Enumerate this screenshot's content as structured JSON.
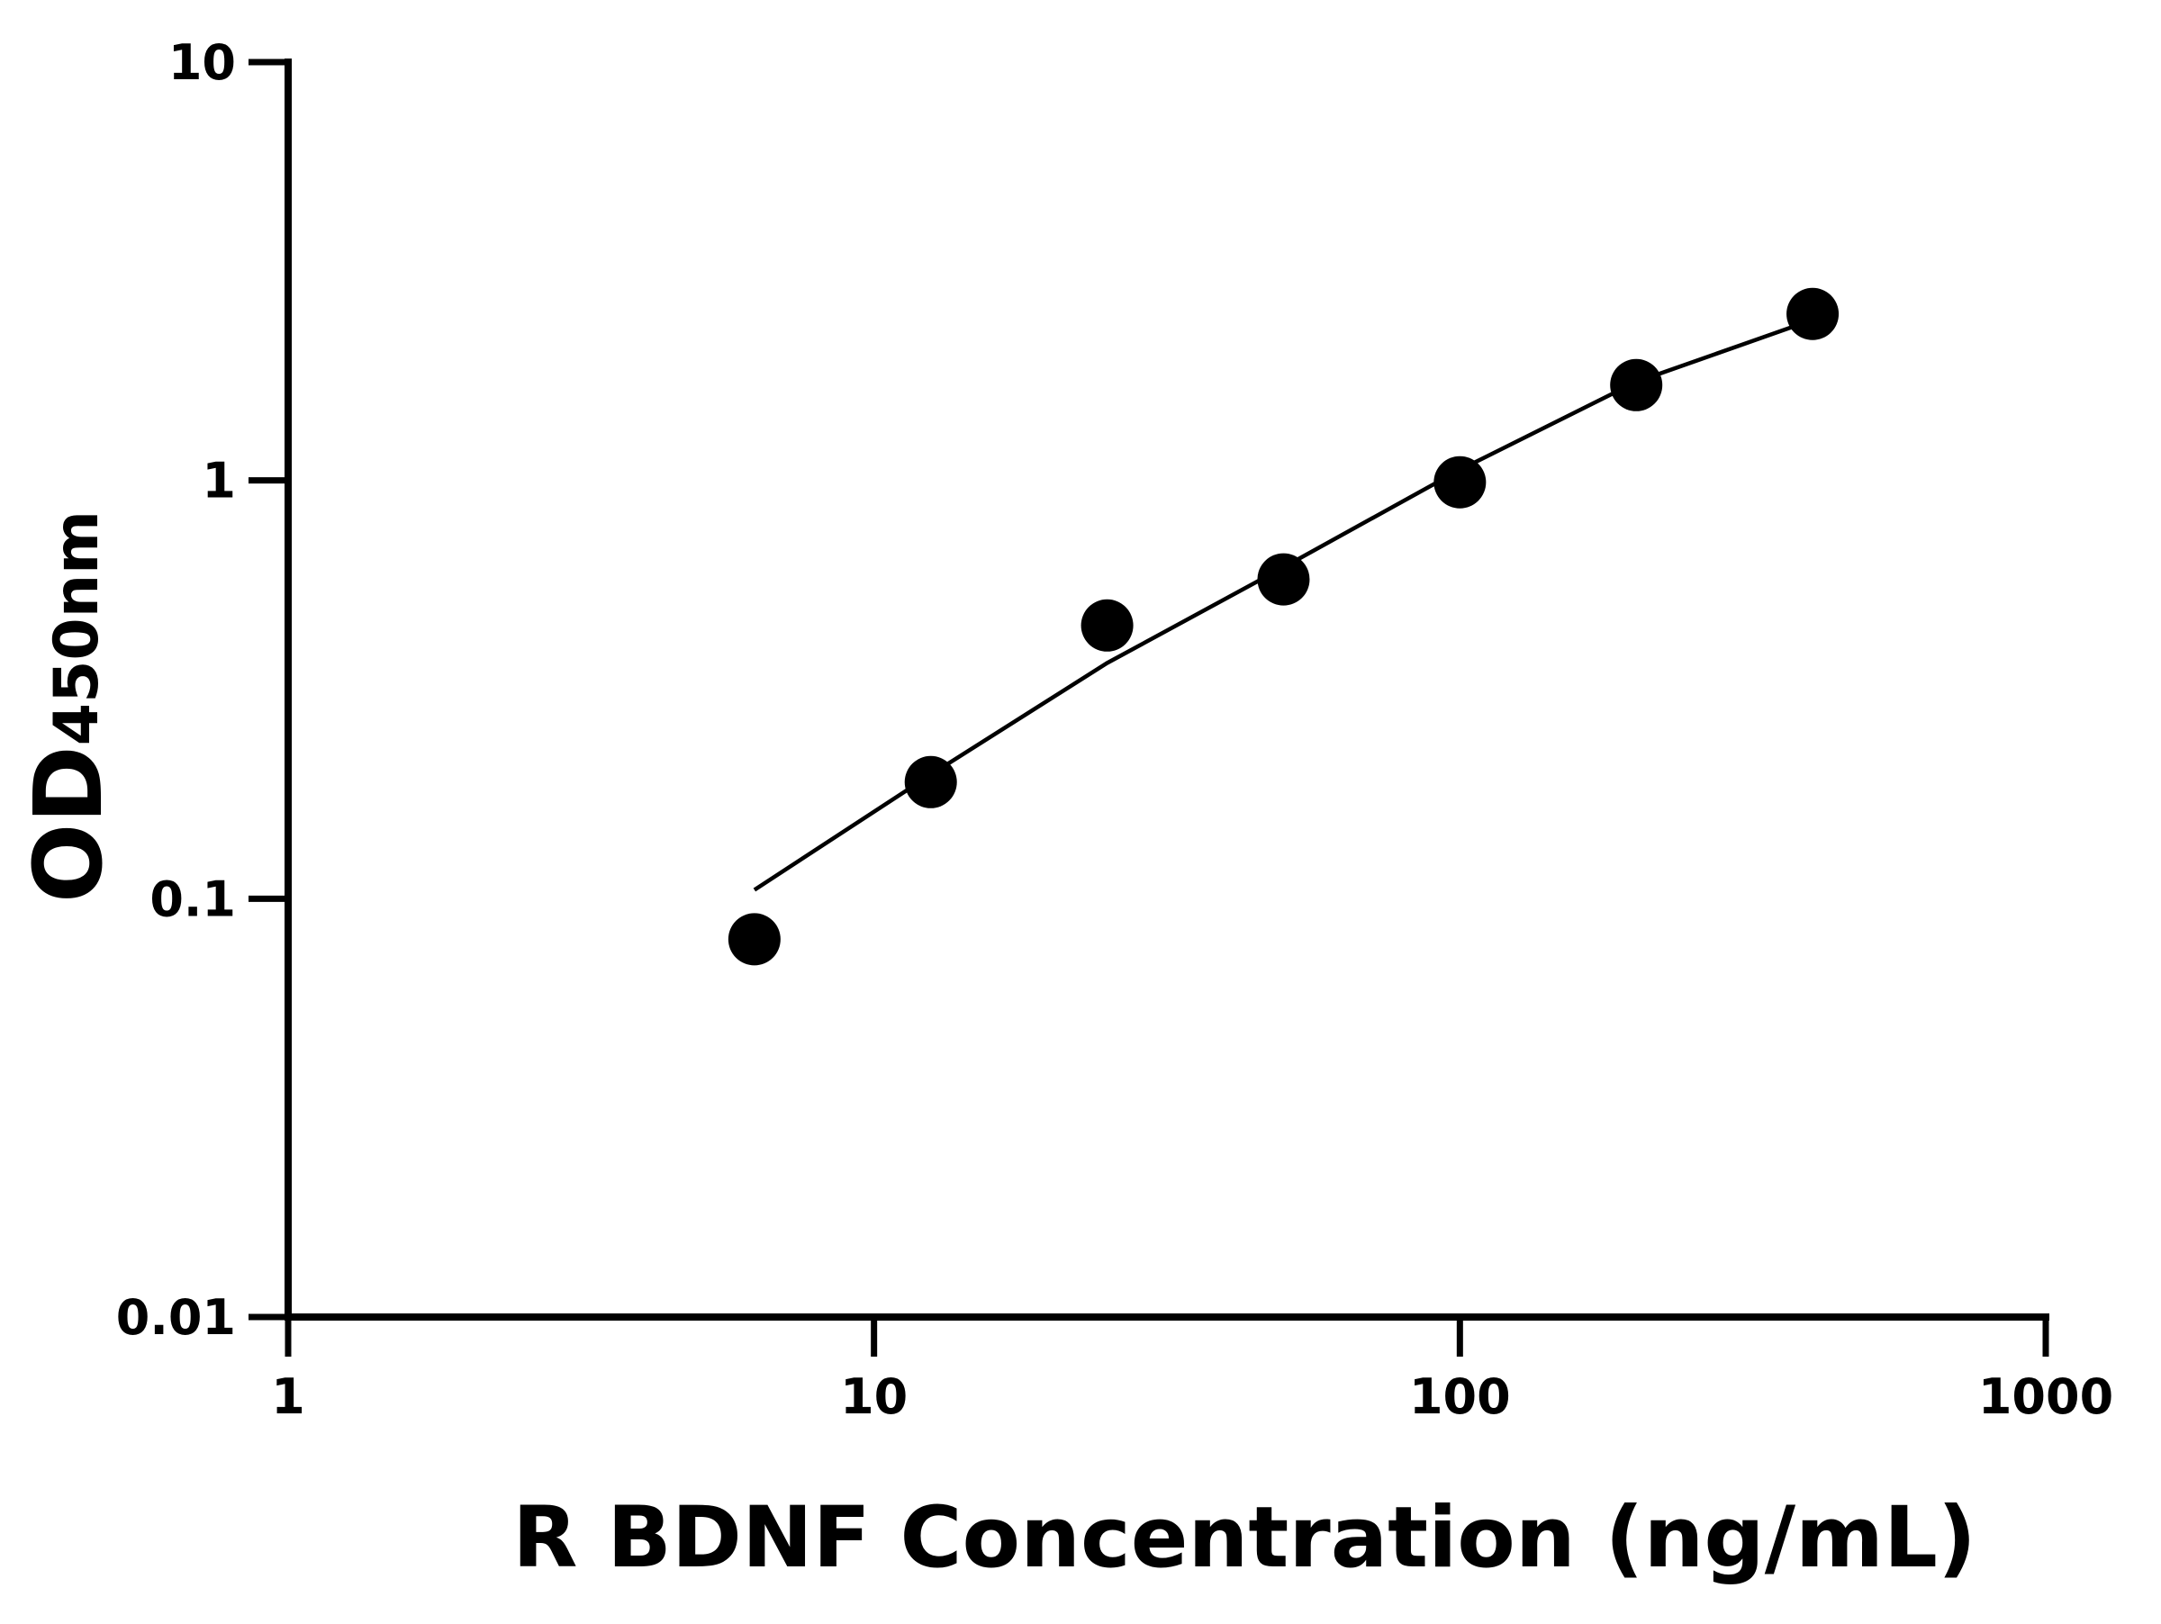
{
  "chart_data": {
    "type": "scatter",
    "x_label": "R BDNF Concentration (ng/mL)",
    "y_label": {
      "text": "OD",
      "subscript": "450nm"
    },
    "xscale": "log",
    "yscale": "log",
    "xlim": [
      1,
      1000
    ],
    "ylim": [
      0.01,
      10
    ],
    "xticks": [
      1,
      10,
      100,
      1000
    ],
    "yticks": [
      0.01,
      0.1,
      1,
      10
    ],
    "x": [
      6.25,
      12.5,
      25,
      50,
      100,
      200,
      400
    ],
    "series": [
      {
        "color": "#000000",
        "values": [
          0.08,
          0.19,
          0.45,
          0.58,
          0.99,
          1.69,
          2.5
        ]
      }
    ],
    "curve": {
      "color": "#000000",
      "x": [
        6.25,
        12.5,
        25,
        50,
        100,
        200,
        400
      ],
      "values": [
        0.105,
        0.198,
        0.366,
        0.62,
        1.06,
        1.72,
        2.42
      ]
    }
  }
}
